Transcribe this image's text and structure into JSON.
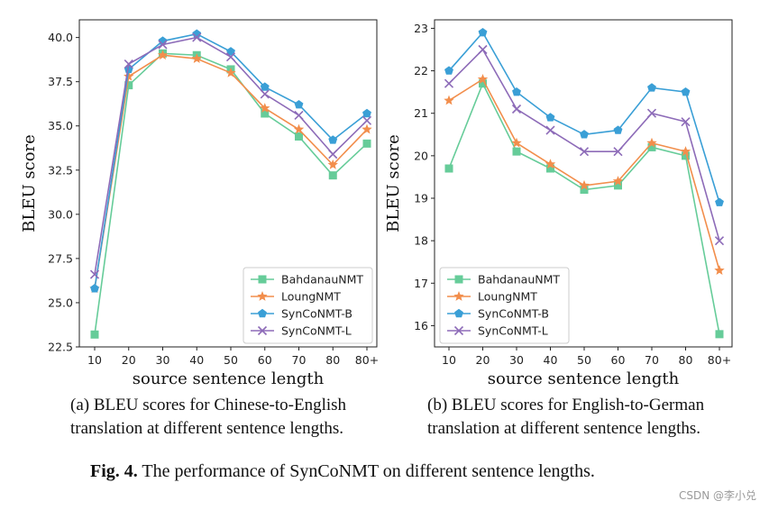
{
  "chart_data": [
    {
      "type": "line",
      "caption_line1": "(a) BLEU scores for Chinese-to-English",
      "caption_line2": "translation at different sentence lengths.",
      "xlabel": "source sentence length",
      "ylabel": "BLEU score",
      "categories": [
        "10",
        "20",
        "30",
        "40",
        "50",
        "60",
        "70",
        "80",
        "80+"
      ],
      "ylim": [
        22.5,
        41.0
      ],
      "yticks": [
        22.5,
        25.0,
        27.5,
        30.0,
        32.5,
        35.0,
        37.5,
        40.0
      ],
      "ytick_labels": [
        "22.5",
        "25.0",
        "27.5",
        "30.0",
        "32.5",
        "35.0",
        "37.5",
        "40.0"
      ],
      "legend_position": "lower-right",
      "series": [
        {
          "name": "BahdanauNMT",
          "color": "#66cc99",
          "marker": "square",
          "values": [
            23.2,
            37.3,
            39.1,
            39.0,
            38.2,
            35.7,
            34.4,
            32.2,
            34.0
          ]
        },
        {
          "name": "LoungNMT",
          "color": "#f28e4c",
          "marker": "star",
          "values": [
            25.8,
            37.8,
            39.0,
            38.8,
            38.0,
            36.0,
            34.8,
            32.8,
            34.8
          ]
        },
        {
          "name": "SynCoNMT-B",
          "color": "#3a9fd6",
          "marker": "pentagon",
          "values": [
            25.8,
            38.2,
            39.8,
            40.2,
            39.2,
            37.2,
            36.2,
            34.2,
            35.7
          ]
        },
        {
          "name": "SynCoNMT-L",
          "color": "#8d6bb8",
          "marker": "x",
          "values": [
            26.6,
            38.5,
            39.6,
            40.0,
            38.9,
            36.8,
            35.6,
            33.4,
            35.3
          ]
        }
      ]
    },
    {
      "type": "line",
      "caption_line1": "(b) BLEU scores for English-to-German",
      "caption_line2": "translation at different sentence lengths.",
      "xlabel": "source sentence length",
      "ylabel": "BLEU score",
      "categories": [
        "10",
        "20",
        "30",
        "40",
        "50",
        "60",
        "70",
        "80",
        "80+"
      ],
      "ylim": [
        15.5,
        23.2
      ],
      "yticks": [
        16,
        17,
        18,
        19,
        20,
        21,
        22,
        23
      ],
      "ytick_labels": [
        "16",
        "17",
        "18",
        "19",
        "20",
        "21",
        "22",
        "23"
      ],
      "legend_position": "lower-left",
      "series": [
        {
          "name": "BahdanauNMT",
          "color": "#66cc99",
          "marker": "square",
          "values": [
            19.7,
            21.7,
            20.1,
            19.7,
            19.2,
            19.3,
            20.2,
            20.0,
            15.8
          ]
        },
        {
          "name": "LoungNMT",
          "color": "#f28e4c",
          "marker": "star",
          "values": [
            21.3,
            21.8,
            20.3,
            19.8,
            19.3,
            19.4,
            20.3,
            20.1,
            17.3
          ]
        },
        {
          "name": "SynCoNMT-B",
          "color": "#3a9fd6",
          "marker": "pentagon",
          "values": [
            22.0,
            22.9,
            21.5,
            20.9,
            20.5,
            20.6,
            21.6,
            21.5,
            18.9
          ]
        },
        {
          "name": "SynCoNMT-L",
          "color": "#8d6bb8",
          "marker": "x",
          "values": [
            21.7,
            22.5,
            21.1,
            20.6,
            20.1,
            20.1,
            21.0,
            20.8,
            18.0
          ]
        }
      ]
    }
  ],
  "figure_caption": {
    "label": "Fig. 4.",
    "text": " The performance of SynCoNMT on different sentence lengths."
  },
  "watermark": "CSDN @李小兑"
}
